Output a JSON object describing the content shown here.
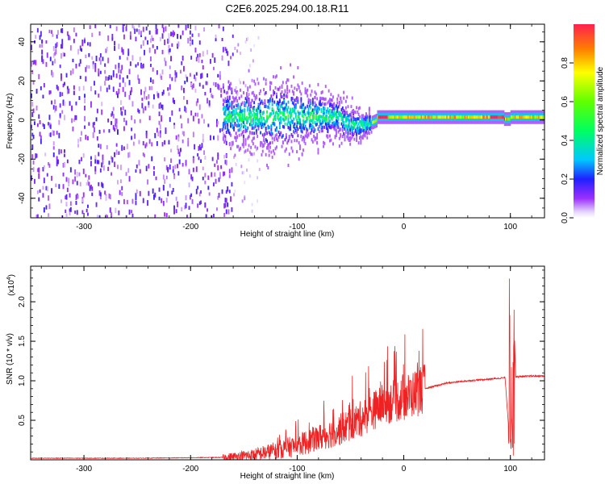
{
  "figure": {
    "title": "C2E6.2025.294.00.18.R11"
  },
  "chart_data": [
    {
      "type": "heatmap",
      "xlabel": "Height of straight line (km)",
      "ylabel": "Frequency (Hz)",
      "xlim": [
        -350,
        132
      ],
      "ylim": [
        -50,
        49
      ],
      "x_ticks": [
        -300,
        -200,
        -100,
        0,
        100
      ],
      "y_ticks": [
        -40,
        -20,
        0,
        20,
        40
      ],
      "colorbar": {
        "label": "Normalized spectral amplitude",
        "range": [
          0.0,
          1.0
        ],
        "ticks": [
          "0.0",
          "0.2",
          "0.4",
          "0.6",
          "0.8"
        ],
        "tick_values": [
          0.0,
          0.2,
          0.4,
          0.6,
          0.8
        ],
        "colormap": "rainbow"
      },
      "regions": [
        {
          "x": [
            -350,
            -160
          ],
          "freq_spread": 49,
          "amplitude": 0.1
        },
        {
          "x": [
            -160,
            -135
          ],
          "freq_spread": 40,
          "amplitude": 0.05
        },
        {
          "x": [
            -170,
            -30
          ],
          "freq_spread": 8,
          "amplitude": 0.3
        },
        {
          "x": [
            -30,
            132
          ],
          "freq_spread": 1.5,
          "amplitude": 0.75
        }
      ]
    },
    {
      "type": "line",
      "xlabel": "Height of straight line (km)",
      "ylabel": "SNR (10 * v/v)",
      "y_multiplier": "(x10",
      "y_multiplier_exp": "4",
      "y_multiplier_close": ")",
      "xlim": [
        -350,
        132
      ],
      "ylim": [
        0,
        2.45
      ],
      "x_ticks": [
        -300,
        -200,
        -100,
        0,
        100
      ],
      "y_ticks": [
        "0.5",
        "1.0",
        "1.5",
        "2.0"
      ],
      "y_tick_values": [
        0.5,
        1.0,
        1.5,
        2.0
      ],
      "series": [
        {
          "color": "#ee2222",
          "x": [
            -350,
            -250,
            -170,
            -140,
            -120,
            -100,
            -80,
            -60,
            -40,
            -20,
            0,
            20,
            40,
            60,
            80,
            95,
            100,
            102,
            105,
            120,
            132
          ],
          "y": [
            0.02,
            0.02,
            0.03,
            0.06,
            0.12,
            0.18,
            0.28,
            0.38,
            0.52,
            0.7,
            0.78,
            0.9,
            0.97,
            1.0,
            1.02,
            1.04,
            0.1,
            2.45,
            1.05,
            1.06,
            1.06
          ]
        }
      ]
    }
  ]
}
